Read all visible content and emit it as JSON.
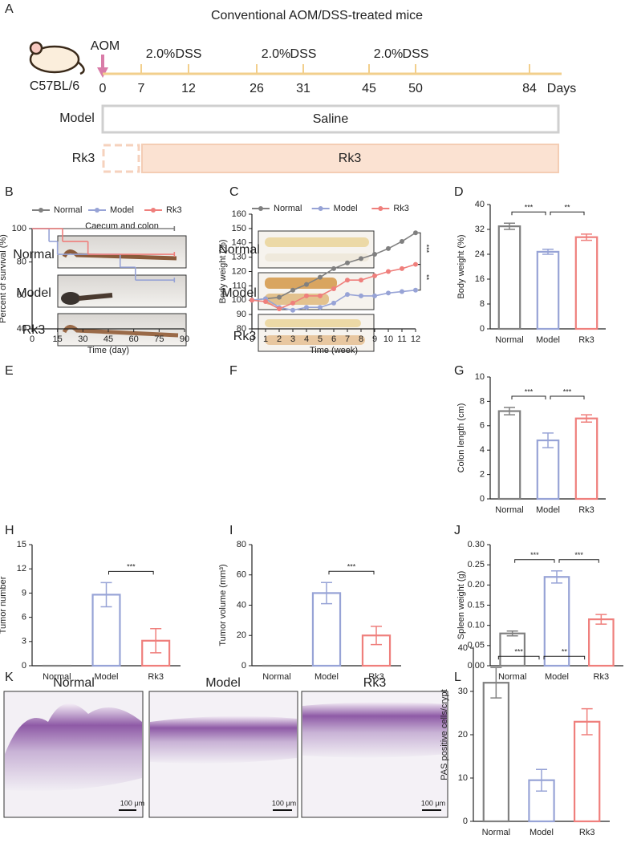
{
  "panel_labels": [
    "A",
    "B",
    "C",
    "D",
    "E",
    "F",
    "G",
    "H",
    "I",
    "J",
    "K",
    "L"
  ],
  "timeline": {
    "title": "Conventional AOM/DSS-treated mice",
    "strain": "C57BL/6",
    "agent": "AOM",
    "cycles": [
      {
        "dose": "2.0%",
        "drug": "DSS"
      },
      {
        "dose": "2.0%",
        "drug": "DSS"
      },
      {
        "dose": "2.0%",
        "drug": "DSS"
      }
    ],
    "days": [
      0,
      7,
      12,
      26,
      31,
      45,
      50,
      84
    ],
    "unit": "Days",
    "groups": [
      {
        "name": "Model",
        "treatment": "Saline"
      },
      {
        "name": "Rk3",
        "treatment": "Rk3"
      }
    ]
  },
  "chart_data": [
    {
      "type": "line",
      "step": true,
      "xlabel": "Time (day)",
      "ylabel": "Percent of survival (%)",
      "xlim": [
        0,
        90
      ],
      "xticks": [
        0,
        15,
        30,
        45,
        60,
        75,
        90
      ],
      "ylim": [
        40,
        100
      ],
      "yticks": [
        40,
        60,
        80,
        100
      ],
      "legend": "top",
      "series": [
        {
          "name": "Normal",
          "color": "#808080",
          "x": [
            0,
            84
          ],
          "values": [
            100,
            100
          ]
        },
        {
          "name": "Model",
          "color": "#97a3d6",
          "x": [
            0,
            10,
            15,
            52,
            61,
            84
          ],
          "values": [
            100,
            92.3,
            84.6,
            76.9,
            69.2,
            69.2
          ]
        },
        {
          "name": "Rk3",
          "color": "#ef7f7c",
          "x": [
            0,
            18,
            33,
            84
          ],
          "values": [
            100,
            92.3,
            84.6,
            84.6
          ]
        }
      ]
    },
    {
      "type": "line",
      "xlabel": "Time (week)",
      "ylabel": "Body weight (%)",
      "x": [
        0,
        1,
        2,
        3,
        4,
        5,
        6,
        7,
        8,
        9,
        10,
        11,
        12
      ],
      "xlim": [
        0,
        12
      ],
      "xticks": [
        0,
        1,
        2,
        3,
        4,
        5,
        6,
        7,
        8,
        9,
        10,
        11,
        12
      ],
      "ylim": [
        80,
        160
      ],
      "yticks": [
        80,
        90,
        100,
        110,
        120,
        130,
        140,
        150,
        160
      ],
      "legend": "top",
      "series": [
        {
          "name": "Normal",
          "color": "#808080",
          "values": [
            100,
            101,
            102,
            107,
            111,
            116,
            122,
            126,
            129,
            132,
            136,
            141,
            147
          ]
        },
        {
          "name": "Model",
          "color": "#97a3d6",
          "values": [
            100,
            101,
            95,
            93,
            95,
            95,
            98,
            104,
            103,
            103,
            105,
            106,
            107
          ]
        },
        {
          "name": "Rk3",
          "color": "#ef7f7c",
          "values": [
            100,
            99,
            94,
            98,
            103,
            103,
            108,
            114,
            114,
            117,
            120,
            122,
            125
          ]
        }
      ],
      "significance": [
        {
          "series": [
            0,
            2
          ],
          "label": "***"
        },
        {
          "series": [
            2,
            1
          ],
          "label": "**"
        }
      ]
    },
    {
      "type": "bar",
      "ylabel": "Body weight (%)",
      "categories": [
        "Normal",
        "Model",
        "Rk3"
      ],
      "values": [
        33,
        24.8,
        29.5
      ],
      "errors": [
        1,
        0.8,
        1
      ],
      "colors": [
        "#808080",
        "#97a3d6",
        "#ef7f7c"
      ],
      "ylim": [
        0,
        40
      ],
      "yticks": [
        0,
        8,
        16,
        24,
        32,
        40
      ],
      "significance": [
        {
          "from": 0,
          "to": 1,
          "label": "***"
        },
        {
          "from": 1,
          "to": 2,
          "label": "**"
        }
      ]
    },
    {
      "type": "bar",
      "ylabel": "Colon length (cm)",
      "categories": [
        "Normal",
        "Model",
        "Rk3"
      ],
      "values": [
        7.2,
        4.8,
        6.6
      ],
      "errors": [
        0.3,
        0.6,
        0.3
      ],
      "colors": [
        "#808080",
        "#97a3d6",
        "#ef7f7c"
      ],
      "ylim": [
        0,
        10
      ],
      "yticks": [
        0,
        2,
        4,
        6,
        8,
        10
      ],
      "significance": [
        {
          "from": 0,
          "to": 1,
          "label": "***"
        },
        {
          "from": 1,
          "to": 2,
          "label": "***"
        }
      ]
    },
    {
      "type": "bar",
      "ylabel": "Tumor number",
      "categories": [
        "Normal",
        "Model",
        "Rk3"
      ],
      "values": [
        0,
        8.8,
        3.1
      ],
      "errors": [
        0,
        1.5,
        1.5
      ],
      "colors": [
        "#808080",
        "#97a3d6",
        "#ef7f7c"
      ],
      "ylim": [
        0,
        15
      ],
      "yticks": [
        0,
        3,
        6,
        9,
        12,
        15
      ],
      "significance": [
        {
          "from": 1,
          "to": 2,
          "label": "***"
        }
      ]
    },
    {
      "type": "bar",
      "ylabel": "Tumor volume (mm³)",
      "categories": [
        "Normal",
        "Model",
        "Rk3"
      ],
      "values": [
        0,
        48,
        20
      ],
      "errors": [
        0,
        7,
        6
      ],
      "colors": [
        "#808080",
        "#97a3d6",
        "#ef7f7c"
      ],
      "ylim": [
        0,
        80
      ],
      "yticks": [
        0,
        20,
        40,
        60,
        80
      ],
      "significance": [
        {
          "from": 1,
          "to": 2,
          "label": "***"
        }
      ]
    },
    {
      "type": "bar",
      "ylabel": "Spleen weight (g)",
      "categories": [
        "Normal",
        "Model",
        "Rk3"
      ],
      "values": [
        0.08,
        0.22,
        0.115
      ],
      "errors": [
        0.006,
        0.015,
        0.012
      ],
      "colors": [
        "#808080",
        "#97a3d6",
        "#ef7f7c"
      ],
      "ylim": [
        0,
        0.3
      ],
      "yticks": [
        {
          "value": 0,
          "label": "0.00"
        },
        {
          "value": 0.05,
          "label": "0.05"
        },
        {
          "value": 0.1,
          "label": "0.10"
        },
        {
          "value": 0.15,
          "label": "0.15"
        },
        {
          "value": 0.2,
          "label": "0.20"
        },
        {
          "value": 0.25,
          "label": "0.25"
        },
        {
          "value": 0.3,
          "label": "0.30"
        }
      ],
      "significance": [
        {
          "from": 0,
          "to": 1,
          "label": "***"
        },
        {
          "from": 1,
          "to": 2,
          "label": "***"
        }
      ]
    },
    {
      "type": "bar",
      "ylabel": "PAS positive cells/crypt",
      "categories": [
        "Normal",
        "Model",
        "Rk3"
      ],
      "values": [
        32,
        9.5,
        23
      ],
      "errors": [
        3.5,
        2.5,
        3
      ],
      "colors": [
        "#808080",
        "#97a3d6",
        "#ef7f7c"
      ],
      "ylim": [
        0,
        40
      ],
      "yticks": [
        0,
        10,
        20,
        30,
        40
      ],
      "significance": [
        {
          "from": 0,
          "to": 1,
          "label": "***"
        },
        {
          "from": 1,
          "to": 2,
          "label": "**"
        }
      ]
    }
  ],
  "photos_colon": {
    "title": "Caecum and colon",
    "rows": [
      "Normal",
      "Model",
      "Rk3"
    ]
  },
  "photos_tumor": {
    "rows": [
      "Normal",
      "Model",
      "Rk3"
    ]
  },
  "histology": {
    "panels": [
      "Normal",
      "Model",
      "Rk3"
    ],
    "scale_bar": "100 μm"
  }
}
